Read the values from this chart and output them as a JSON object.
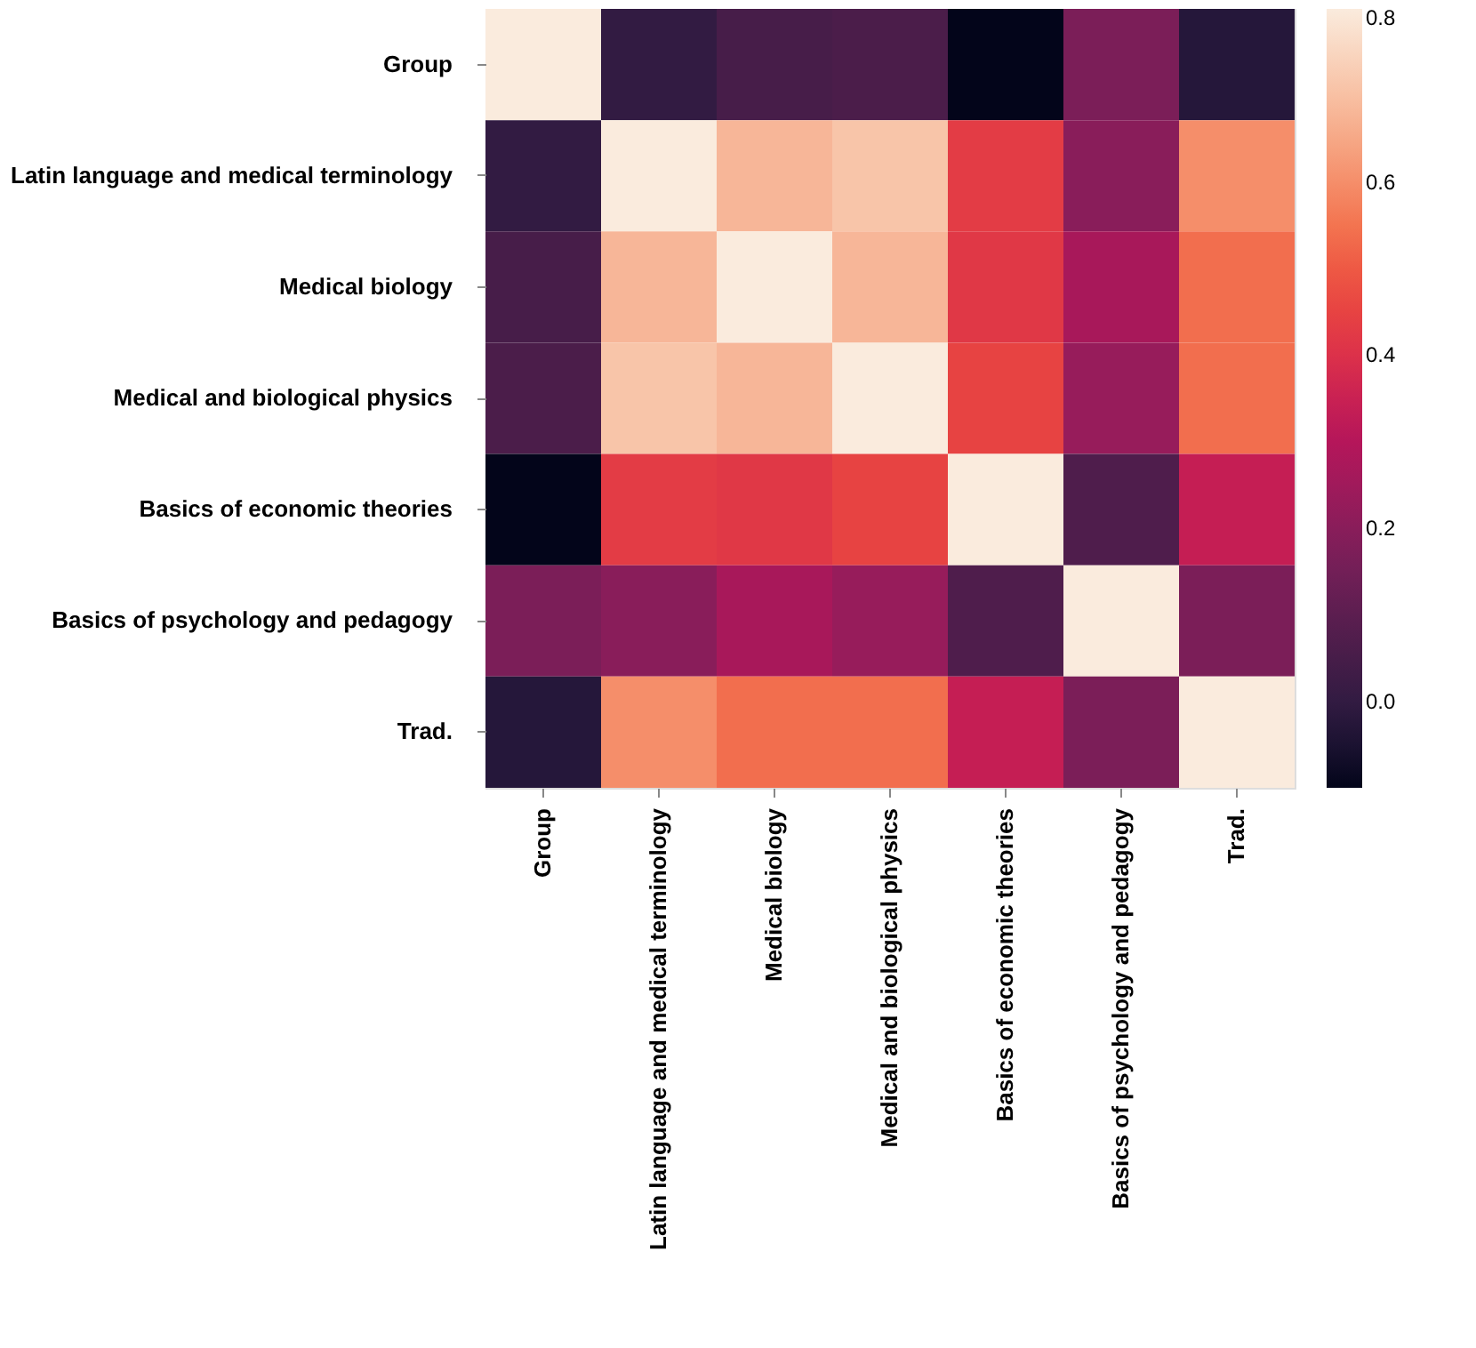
{
  "chart_data": {
    "type": "heatmap",
    "categories": [
      "Group",
      "Latin language and medical terminology",
      "Medical biology",
      "Medical and biological physics",
      "Basics of economic theories",
      "Basics of psychology and pedagogy",
      "Trad."
    ],
    "y_categories": [
      "Group",
      "Latin language and medical terminology",
      "Medical biology",
      "Medical and biological physics",
      "Basics of economic theories",
      "Basics of psychology and pedagogy",
      "Trad."
    ],
    "cells": [
      [
        0.8,
        0.0,
        0.05,
        0.06,
        -0.1,
        0.17,
        -0.03
      ],
      [
        0.0,
        0.8,
        0.68,
        0.71,
        0.43,
        0.2,
        0.6
      ],
      [
        0.05,
        0.68,
        0.8,
        0.68,
        0.42,
        0.27,
        0.54
      ],
      [
        0.06,
        0.71,
        0.68,
        0.8,
        0.45,
        0.23,
        0.54
      ],
      [
        -0.1,
        0.43,
        0.42,
        0.45,
        0.8,
        0.07,
        0.34
      ],
      [
        0.17,
        0.2,
        0.27,
        0.23,
        0.07,
        0.8,
        0.17
      ],
      [
        -0.03,
        0.6,
        0.54,
        0.54,
        0.34,
        0.17,
        0.8
      ]
    ],
    "clim": [
      -0.1,
      0.8
    ],
    "cticks": [
      {
        "value": 0.0,
        "label": "0.0"
      },
      {
        "value": 0.2,
        "label": "0.2"
      },
      {
        "value": 0.4,
        "label": "0.4"
      },
      {
        "value": 0.6,
        "label": "0.6"
      },
      {
        "value": 0.8,
        "label": "0.8"
      }
    ]
  }
}
